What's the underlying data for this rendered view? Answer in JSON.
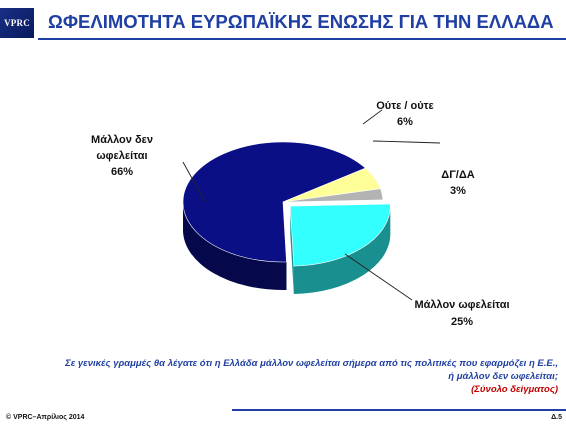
{
  "header": {
    "logo_text": "VPRC",
    "title": "ΩΦΕΛΙΜΟΤΗΤΑ ΕΥΡΩΠΑΪΚΗΣ ΕΝΩΣΗΣ ΓΙΑ ΤΗΝ ΕΛΛΑΔΑ"
  },
  "chart_data": {
    "type": "pie",
    "title": "ΩΦΕΛΙΜΟΤΗΤΑ ΕΥΡΩΠΑΪΚΗΣ ΕΝΩΣΗΣ ΓΙΑ ΤΗΝ ΕΛΛΑΔΑ",
    "unit": "%",
    "slices": [
      {
        "label": "Μάλλον ωφελείται",
        "value": 25,
        "display": "25%",
        "color": "#33ffff",
        "side_color": "#1a8f8f",
        "exploded": true
      },
      {
        "label": "Μάλλον δεν ωφελείται",
        "value": 66,
        "display": "66%",
        "color": "#0a0f85",
        "side_color": "#05084a",
        "exploded": false
      },
      {
        "label": "Ούτε / ούτε",
        "value": 6,
        "display": "6%",
        "color": "#ffff99",
        "side_color": "#b3b36b",
        "exploded": false
      },
      {
        "label": "ΔΓ/ΔΑ",
        "value": 3,
        "display": "3%",
        "color": "#b3b3b3",
        "side_color": "#7a7a7a",
        "exploded": false
      }
    ]
  },
  "labels": {
    "neither_1": "Ούτε / ούτε",
    "neither_2": "6%",
    "dk_1": "ΔΓ/ΔΑ",
    "dk_2": "3%",
    "not_benefit_1": "Μάλλον δεν",
    "not_benefit_2": "ωφελείται",
    "not_benefit_3": "66%",
    "benefit_1": "Μάλλον ωφελείται",
    "benefit_2": "25%"
  },
  "question": {
    "line1": "Σε γενικές γραμμές θα λέγατε ότι η Ελλάδα μάλλον ωφελείται σήμερα από τις πολιτικές που εφαρμόζει η Ε.Ε.,",
    "line2": "ή μάλλον δεν ωφελείται;",
    "sample": "(Σύνολο δείγματος)"
  },
  "footer": {
    "copyright": "© VPRC–Απρίλιος 2014",
    "page": "Δ.5"
  }
}
